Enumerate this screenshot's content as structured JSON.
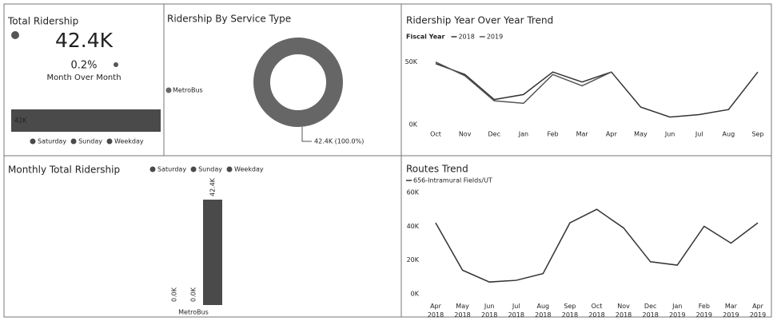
{
  "kpi": {
    "title": "Total Ridership",
    "value": "42.4K",
    "change": "0.2%",
    "change_label": "Month Over Month"
  },
  "chart_data": [
    {
      "type": "hbar",
      "series": [
        {
          "name": "Saturday",
          "color": "#4a4a4a",
          "values": [
            0
          ]
        },
        {
          "name": "Sunday",
          "color": "#4a4a4a",
          "values": [
            0
          ]
        },
        {
          "name": "Weekday",
          "color": "#4a4a4a",
          "values": [
            42400
          ],
          "value_labels": [
            "42K"
          ]
        }
      ]
    },
    {
      "type": "donut",
      "title": "Ridership By Service Type",
      "categories": [
        "MetroBus"
      ],
      "values": [
        42400
      ],
      "value_labels": [
        "42.4K (100.0%)"
      ],
      "colors": [
        "#666666"
      ]
    },
    {
      "type": "line",
      "title": "Ridership Year Over Year Trend",
      "legend_title": "Fiscal Year",
      "categories": [
        "Oct",
        "Nov",
        "Dec",
        "Jan",
        "Feb",
        "Mar",
        "Apr",
        "May",
        "Jun",
        "Jul",
        "Aug",
        "Sep"
      ],
      "series": [
        {
          "name": "2018",
          "color": "#333333",
          "values": [
            48700,
            40000,
            20000,
            24000,
            42000,
            34000,
            42000,
            14000,
            6000,
            8000,
            12000,
            42000
          ]
        },
        {
          "name": "2019",
          "color": "#555555",
          "values": [
            50000,
            39000,
            19000,
            17000,
            40000,
            31000,
            42000,
            null,
            null,
            null,
            null,
            null
          ]
        }
      ],
      "ylim": [
        0,
        60000
      ],
      "yticks": [
        {
          "value": 0,
          "label": "0K"
        },
        {
          "value": 50000,
          "label": "50K"
        }
      ]
    },
    {
      "type": "column",
      "title": "Monthly Total Ridership",
      "categories": [
        "MetroBus"
      ],
      "series": [
        {
          "name": "Saturday",
          "color": "#4a4a4a",
          "values": [
            0
          ],
          "value_labels": [
            "0.0K"
          ]
        },
        {
          "name": "Sunday",
          "color": "#4a4a4a",
          "values": [
            0
          ],
          "value_labels": [
            "0.0K"
          ]
        },
        {
          "name": "Weekday",
          "color": "#4a4a4a",
          "values": [
            42400
          ],
          "value_labels": [
            "42.4K"
          ]
        }
      ]
    },
    {
      "type": "line",
      "title": "Routes Trend",
      "categories": [
        "Apr 2018",
        "May 2018",
        "Jun 2018",
        "Jul 2018",
        "Aug 2018",
        "Sep 2018",
        "Oct 2018",
        "Nov 2018",
        "Dec 2018",
        "Jan 2019",
        "Feb 2019",
        "Mar 2019",
        "Apr 2019"
      ],
      "series": [
        {
          "name": "656-Intramural Fields/UT",
          "color": "#333333",
          "values": [
            42000,
            14000,
            7000,
            8000,
            12000,
            42000,
            50000,
            39000,
            19000,
            17000,
            40000,
            30000,
            42000
          ]
        }
      ],
      "ylim": [
        0,
        60000
      ],
      "yticks": [
        {
          "value": 0,
          "label": "0K"
        },
        {
          "value": 20000,
          "label": "20K"
        },
        {
          "value": 40000,
          "label": "40K"
        },
        {
          "value": 60000,
          "label": "60K"
        }
      ]
    }
  ]
}
